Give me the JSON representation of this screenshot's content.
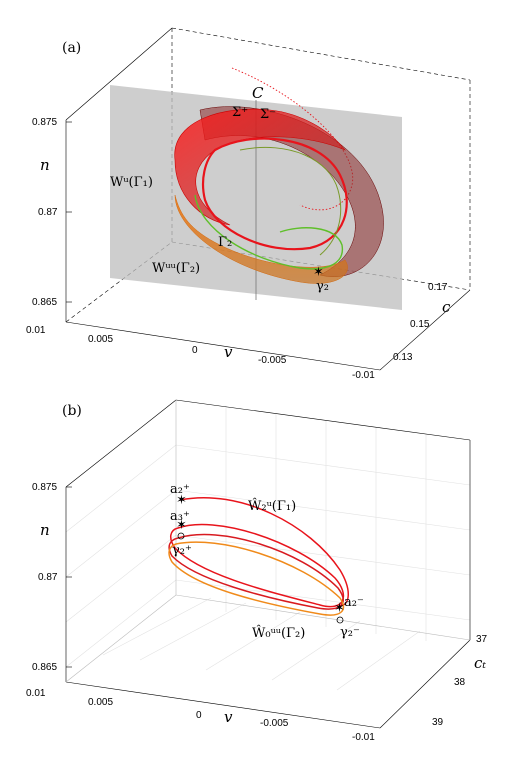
{
  "chart_data": [
    {
      "type": "line",
      "panel_label": "(a)",
      "axes": {
        "n": {
          "label": "n",
          "ticks": [
            "0.875",
            "0.87",
            "0.865"
          ]
        },
        "v": {
          "label": "v",
          "ticks": [
            "0.01",
            "0.005",
            "0",
            "-0.005",
            "-0.01"
          ]
        },
        "c": {
          "label": "c",
          "ticks": [
            "0.17",
            "0.15",
            "0.13"
          ]
        }
      },
      "annotations": [
        {
          "id": "C",
          "text": "C"
        },
        {
          "id": "sigma_plus",
          "text": "Σ⁺"
        },
        {
          "id": "sigma_minus",
          "text": "Σ⁻"
        },
        {
          "id": "Wu",
          "text": "Wᵘ(Γ₁)"
        },
        {
          "id": "Gamma2",
          "text": "Γ₂"
        },
        {
          "id": "Wuu",
          "text": "Wᵘᵘ(Γ₂)"
        },
        {
          "id": "gamma2",
          "text": "γ₂"
        }
      ],
      "series_colors": {
        "unstable_manifold": "#e8141c",
        "strong_unstable": "#f08a1a",
        "periodic_orbit": "#5fbf2a",
        "section_plane": "#b5b5b5"
      },
      "grid": false
    },
    {
      "type": "line",
      "panel_label": "(b)",
      "axes": {
        "n": {
          "label": "n",
          "ticks": [
            "0.875",
            "0.87",
            "0.865"
          ]
        },
        "v": {
          "label": "v",
          "ticks": [
            "0.01",
            "0.005",
            "0",
            "-0.005",
            "-0.01"
          ]
        },
        "ct": {
          "label": "cₜ",
          "ticks": [
            "37",
            "38",
            "39"
          ]
        }
      },
      "annotations": [
        {
          "id": "a2p",
          "text": "a₂⁺"
        },
        {
          "id": "a3p",
          "text": "a₃⁺"
        },
        {
          "id": "g2p",
          "text": "γ₂⁺"
        },
        {
          "id": "a2m",
          "text": "a₂⁻"
        },
        {
          "id": "g2m",
          "text": "γ₂⁻"
        },
        {
          "id": "W2u",
          "text": "Ŵ₂ᵘ(Γ₁)"
        },
        {
          "id": "W0uu",
          "text": "Ŵ₀ᵘᵘ(Γ₂)"
        }
      ],
      "series_colors": {
        "unstable_manifold": "#e8141c",
        "strong_unstable": "#f08a1a"
      },
      "grid": true
    }
  ]
}
